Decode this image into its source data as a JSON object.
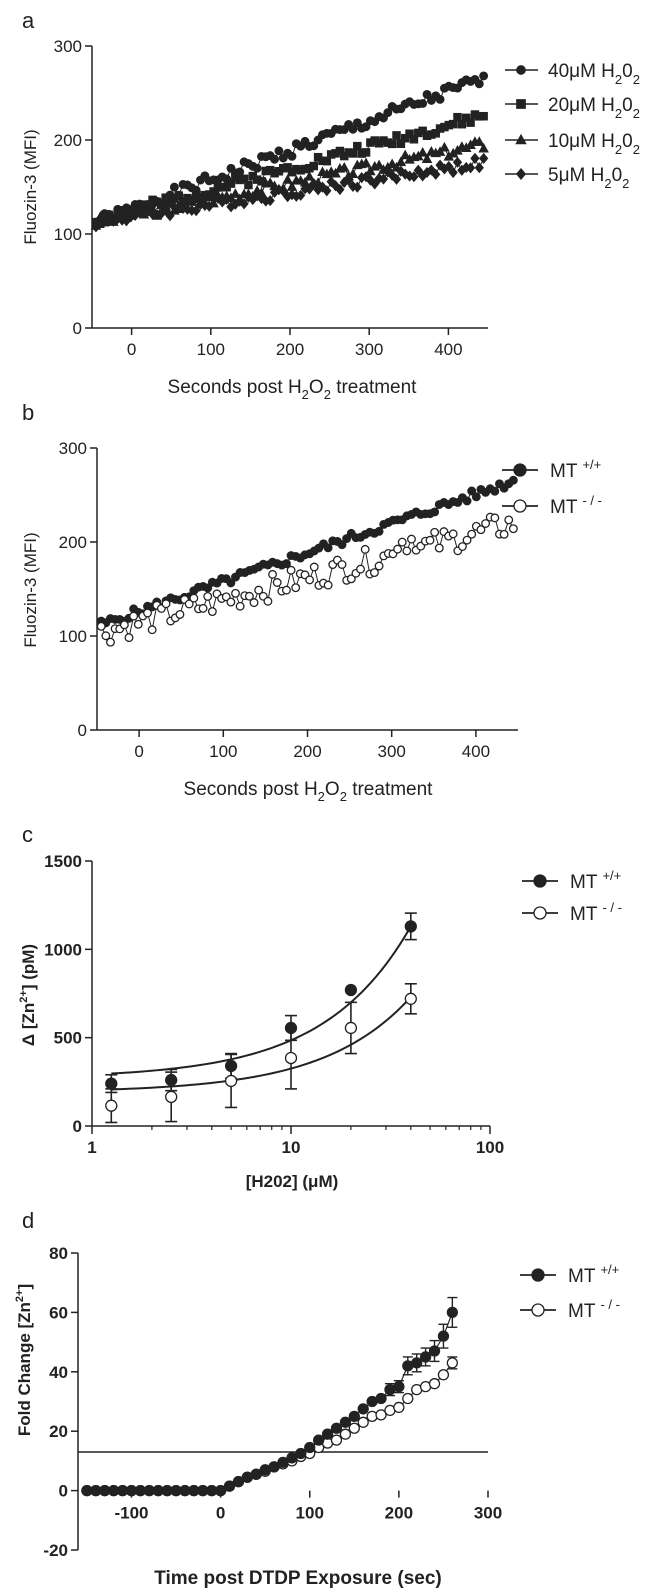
{
  "chart_data": [
    {
      "panel": "a",
      "type": "scatter",
      "ylabel": "Fluozin-3 (MFI)",
      "xlabel": "Seconds post H2O2 treatment",
      "xlabel_parts": [
        "Seconds post H",
        "2",
        "O",
        "2",
        " treatment"
      ],
      "xlim": [
        -50,
        450
      ],
      "ylim": [
        0,
        300
      ],
      "xticks": [
        "0",
        "100",
        "200",
        "300",
        "400"
      ],
      "yticks": [
        "0",
        "100",
        "200",
        "300"
      ],
      "legend_position": "right",
      "series": [
        {
          "name": "40μM H202",
          "marker": "circle",
          "filled": true,
          "start": 112,
          "end": 265,
          "amp": 7,
          "seed": 1
        },
        {
          "name": "20μM H202",
          "marker": "square",
          "filled": true,
          "start": 114,
          "end": 226,
          "amp": 6,
          "seed": 2
        },
        {
          "name": "10μM H202",
          "marker": "triangle",
          "filled": true,
          "start": 112,
          "end": 195,
          "amp": 6,
          "seed": 3
        },
        {
          "name": "5μM H202",
          "marker": "diamond",
          "filled": true,
          "start": 113,
          "end": 176,
          "amp": 6,
          "seed": 4
        }
      ]
    },
    {
      "panel": "b",
      "type": "scatter",
      "ylabel": "Fluozin-3 (MFI)",
      "xlabel": "Seconds post H2O2 treatment",
      "xlabel_parts": [
        "Seconds post H",
        "2",
        "O",
        "2",
        " treatment"
      ],
      "xlim": [
        -50,
        450
      ],
      "ylim": [
        0,
        300
      ],
      "xticks": [
        "0",
        "100",
        "200",
        "300",
        "400"
      ],
      "yticks": [
        "0",
        "100",
        "200",
        "300"
      ],
      "legend_position": "right",
      "series": [
        {
          "name": "MT +/+",
          "marker": "circle",
          "filled": true,
          "start": 112,
          "end": 265,
          "amp": 5,
          "seed": 5
        },
        {
          "name": "MT - / -",
          "marker": "circle",
          "filled": false,
          "start": 104,
          "end": 220,
          "amp": 14,
          "seed": 6
        }
      ]
    },
    {
      "panel": "c",
      "type": "scatter",
      "ylabel": "Δ [Zn2+] (pM)",
      "xlabel": "[H202] (μM)",
      "xscale": "log",
      "xlim": [
        1,
        100
      ],
      "ylim": [
        0,
        1500
      ],
      "xticks": [
        "1",
        "10",
        "100"
      ],
      "yticks": [
        "0",
        "500",
        "1000",
        "1500"
      ],
      "legend_position": "right",
      "series": [
        {
          "name": "MT +/+",
          "filled": true,
          "x": [
            1.25,
            2.5,
            5,
            10,
            20,
            40
          ],
          "y": [
            240,
            260,
            340,
            555,
            770,
            1130
          ],
          "err": [
            50,
            60,
            70,
            70,
            0,
            75
          ],
          "fit_base": 270,
          "fit_slope": 21.5
        },
        {
          "name": "MT - / -",
          "filled": false,
          "x": [
            1.25,
            2.5,
            5,
            10,
            20,
            40
          ],
          "y": [
            115,
            165,
            255,
            385,
            555,
            720
          ],
          "err": [
            95,
            140,
            150,
            175,
            145,
            85
          ],
          "fit_base": 190,
          "fit_slope": 13.5
        }
      ]
    },
    {
      "panel": "d",
      "type": "line",
      "ylabel": "Fold Change [Zn2+]",
      "xlabel": "Time post DTDP Exposure (sec)",
      "xlim": [
        -160,
        300
      ],
      "ylim": [
        -20,
        80
      ],
      "xticks": [
        "-100",
        "0",
        "100",
        "200",
        "300"
      ],
      "yticks": [
        "-20",
        "0",
        "20",
        "40",
        "60",
        "80"
      ],
      "legend_position": "right",
      "series": [
        {
          "name": "MT +/+",
          "filled": true,
          "x": [
            -150,
            -140,
            -130,
            -120,
            -110,
            -100,
            -90,
            -80,
            -70,
            -60,
            -50,
            -40,
            -30,
            -20,
            -10,
            0,
            10,
            20,
            30,
            40,
            50,
            60,
            70,
            80,
            90,
            100,
            110,
            120,
            130,
            140,
            150,
            160,
            170,
            180,
            190,
            200,
            210,
            220,
            230,
            240,
            250,
            260
          ],
          "y": [
            0,
            0,
            0,
            0,
            0,
            0,
            0,
            0,
            0,
            0,
            0,
            0,
            0,
            0,
            0,
            0,
            1.5,
            3,
            4.5,
            5.5,
            7,
            8,
            9.5,
            11,
            12.5,
            14.5,
            17,
            19,
            21,
            23,
            25,
            27.5,
            30,
            31,
            34,
            35,
            42,
            43,
            45,
            47,
            52,
            60
          ],
          "err": [
            0,
            0,
            0,
            0,
            0,
            0,
            0,
            0,
            0,
            0,
            0,
            0,
            0,
            0,
            0,
            0,
            0,
            0,
            0,
            0,
            0,
            0,
            0,
            0,
            0,
            0,
            0,
            0,
            0,
            0,
            0,
            0,
            0,
            0,
            2,
            2,
            3,
            3,
            3,
            3.5,
            4,
            5
          ]
        },
        {
          "name": "MT - / -",
          "filled": false,
          "x": [
            -150,
            -140,
            -130,
            -120,
            -110,
            -100,
            -90,
            -80,
            -70,
            -60,
            -50,
            -40,
            -30,
            -20,
            -10,
            0,
            10,
            20,
            30,
            40,
            50,
            60,
            70,
            80,
            90,
            100,
            110,
            120,
            130,
            140,
            150,
            160,
            170,
            180,
            190,
            200,
            210,
            220,
            230,
            240,
            250,
            260
          ],
          "y": [
            0,
            0,
            0,
            0,
            0,
            0,
            0,
            0,
            0,
            0,
            0,
            0,
            0,
            0,
            0,
            0,
            1.5,
            3,
            4.5,
            5.5,
            6.5,
            8,
            9,
            10,
            11.5,
            12.5,
            14.5,
            16,
            17,
            19,
            21,
            23,
            25,
            25.5,
            27,
            28,
            31,
            34,
            35,
            36,
            39,
            43
          ],
          "err": [
            0,
            0,
            0,
            0,
            0,
            0,
            0,
            0,
            0,
            0,
            0,
            0,
            0,
            0,
            0,
            0,
            0,
            0,
            0,
            0,
            0,
            0,
            0,
            0,
            0,
            0,
            0,
            0,
            0,
            0,
            0,
            0,
            0,
            0,
            0,
            0,
            0,
            0,
            0,
            0,
            0,
            2
          ]
        }
      ]
    }
  ],
  "labels": {
    "a": "a",
    "b": "b",
    "c": "c",
    "d": "d"
  },
  "legend_a": [
    {
      "pre": "40μM H",
      "s1": "2",
      "mid": "0",
      "s2": "2"
    },
    {
      "pre": "20μM H",
      "s1": "2",
      "mid": "0",
      "s2": "2"
    },
    {
      "pre": "10μM H",
      "s1": "2",
      "mid": "0",
      "s2": "2"
    },
    {
      "pre": "5μM H",
      "s1": "2",
      "mid": "0",
      "s2": "2"
    }
  ],
  "legend_mt": [
    {
      "pre": "MT",
      "sup": "+/+"
    },
    {
      "pre": "MT",
      "sup": "- / -"
    }
  ],
  "ylabel_c_parts": [
    "Δ [Zn",
    "2+",
    "] (pM)"
  ],
  "ylabel_d_parts": [
    "Fold Change [Zn",
    "2+",
    "]"
  ]
}
